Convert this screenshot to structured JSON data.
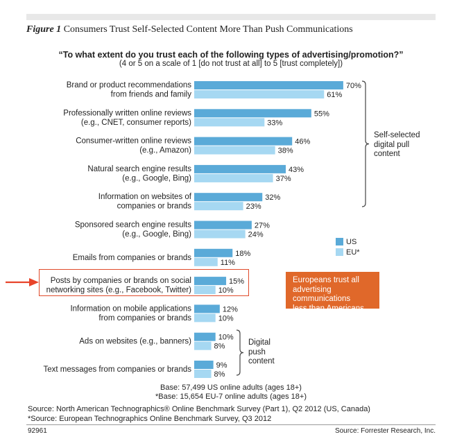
{
  "figure": {
    "number": "Figure 1",
    "title": "Consumers Trust Self-Selected Content More Than Push Communications",
    "id": "92961",
    "credit": "Source: Forrester Research, Inc."
  },
  "question": {
    "line1": "“To what extent do you trust each of the following types of advertising/promotion?”",
    "line2": "(4 or 5 on a scale of 1 [do not trust at all] to 5 [trust completely])"
  },
  "chart_data": {
    "type": "bar",
    "orientation": "horizontal",
    "categories": [
      [
        "Brand or product recommendations",
        "from friends and family"
      ],
      [
        "Professionally written online reviews",
        "(e.g., CNET, consumer reports)"
      ],
      [
        "Consumer-written online reviews",
        "(e.g., Amazon)"
      ],
      [
        "Natural search engine results",
        "(e.g., Google, Bing)"
      ],
      [
        "Information on websites of",
        "companies or brands"
      ],
      [
        "Sponsored search engine results",
        "(e.g., Google, Bing)"
      ],
      [
        "Emails from companies or brands"
      ],
      [
        "Posts by companies or brands on social",
        "networking sites (e.g., Facebook, Twitter)"
      ],
      [
        "Information on mobile applications",
        "from companies or brands"
      ],
      [
        "Ads on websites (e.g., banners)"
      ],
      [
        "Text messages from companies or brands"
      ]
    ],
    "series": [
      {
        "name": "US",
        "color": "#5aaad8",
        "values": [
          70,
          55,
          46,
          43,
          32,
          27,
          18,
          15,
          12,
          10,
          9
        ]
      },
      {
        "name": "EU*",
        "color": "#a6d8f2",
        "values": [
          61,
          33,
          38,
          37,
          23,
          24,
          11,
          10,
          10,
          8,
          8
        ]
      }
    ],
    "value_suffix": "%",
    "xlim": [
      0,
      100
    ],
    "grid": false,
    "legend": "right",
    "highlighted_category_index": 7,
    "groups": [
      {
        "label": [
          "Self-selected",
          "digital pull",
          "content"
        ],
        "from": 0,
        "to": 4
      },
      {
        "label": [
          "Digital",
          "push",
          "content"
        ],
        "from": 9,
        "to": 10
      }
    ]
  },
  "callout": [
    "Europeans trust all",
    "advertising communications",
    "less than Americans."
  ],
  "notes": {
    "base1": "Base: 57,499 US online adults (ages 18+)",
    "base2": "*Base: 15,654 EU-7 online adults (ages 18+)",
    "source1": "Source: North American Technographics® Online Benchmark Survey (Part 1), Q2 2012 (US, Canada)",
    "source2": "*Source: European Technographics Online Benchmark Survey, Q3 2012"
  },
  "colors": {
    "accent": "#e0682a",
    "highlight_border": "#e04a2a",
    "arrow": "#e8442a"
  }
}
